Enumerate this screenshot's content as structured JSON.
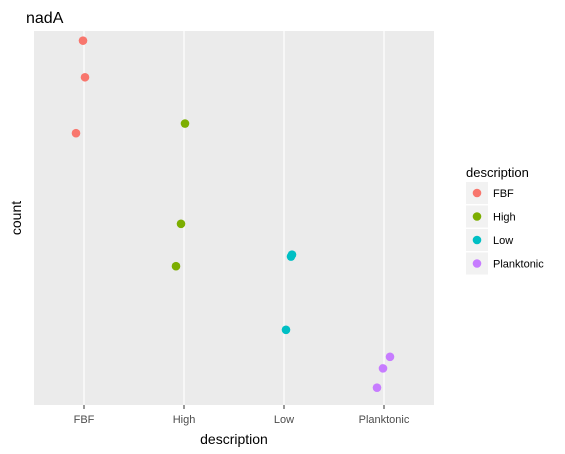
{
  "chart_data": {
    "type": "scatter",
    "title": "nadA",
    "xlabel": "description",
    "ylabel": "count",
    "categories": [
      "FBF",
      "High",
      "Low",
      "Planktonic"
    ],
    "y_axis_tick_labels": "none",
    "grid": "vertical-major-only",
    "legend": {
      "title": "description",
      "placement": "right",
      "entries": [
        "FBF",
        "High",
        "Low",
        "Planktonic"
      ]
    },
    "colors": {
      "FBF": "#F8766D",
      "High": "#7CAE00",
      "Low": "#00BFC4",
      "Planktonic": "#C77CFF",
      "panel_background": "#EBEBEB",
      "grid": "#FFFFFF"
    },
    "ylim": [
      0.03,
      1.0
    ],
    "series": [
      {
        "name": "FBF",
        "x": [
          "FBF",
          "FBF",
          "FBF"
        ],
        "jitter": [
          -0.01,
          0.01,
          -0.08
        ],
        "y": [
          0.975,
          0.88,
          0.735
        ]
      },
      {
        "name": "High",
        "x": [
          "High",
          "High",
          "High"
        ],
        "jitter": [
          0.01,
          -0.03,
          -0.08
        ],
        "y": [
          0.76,
          0.5,
          0.39
        ]
      },
      {
        "name": "Low",
        "x": [
          "Low",
          "Low",
          "Low"
        ],
        "jitter": [
          0.07,
          0.08,
          0.02
        ],
        "y": [
          0.415,
          0.42,
          0.225
        ]
      },
      {
        "name": "Planktonic",
        "x": [
          "Planktonic",
          "Planktonic",
          "Planktonic"
        ],
        "jitter": [
          0.06,
          -0.01,
          -0.07
        ],
        "y": [
          0.155,
          0.125,
          0.075
        ]
      }
    ]
  }
}
